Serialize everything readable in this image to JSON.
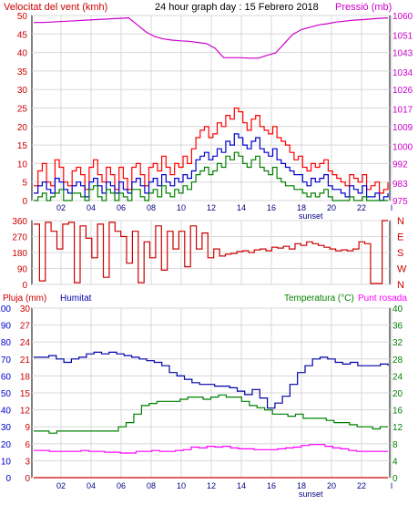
{
  "chart_data": [
    {
      "type": "line",
      "title": "24 hour graph day : 15 Febrero 2018",
      "left_axis_label": "Velocitat del vent (kmh)",
      "right_axis_label": "Pressió (mb)",
      "y_left": {
        "ylim": [
          0,
          50
        ],
        "ticks": [
          0,
          5,
          10,
          15,
          20,
          25,
          30,
          35,
          40,
          45,
          50
        ]
      },
      "y_right": {
        "ylim": [
          975,
          1054
        ],
        "ticks": [
          975,
          983,
          992,
          1000,
          1009,
          1017,
          1026,
          1034,
          1043,
          1051,
          1060
        ]
      },
      "x_ticks": [
        "02",
        "04",
        "06",
        "08",
        "10",
        "12",
        "14",
        "16",
        "18",
        "20",
        "22",
        "l"
      ],
      "x_marker": "sunset",
      "series": [
        {
          "color": "#ff0000",
          "values": [
            4,
            8,
            10,
            5,
            4,
            11,
            9,
            5,
            4,
            8,
            9,
            7,
            3,
            9,
            11,
            7,
            5,
            9,
            7,
            3,
            9,
            6,
            3,
            9,
            10,
            7,
            4,
            9,
            10,
            8,
            12,
            9,
            7,
            10,
            9,
            12,
            10,
            14,
            17,
            19,
            20,
            17,
            18,
            21,
            20,
            23,
            22,
            25,
            24,
            21,
            19,
            22,
            23,
            20,
            19,
            18,
            20,
            17,
            16,
            15,
            13,
            11,
            12,
            9,
            8,
            10,
            9,
            10,
            11,
            8,
            7,
            6,
            5,
            4,
            7,
            6,
            5,
            7,
            3,
            4,
            5,
            2,
            3,
            5
          ]
        },
        {
          "color": "#0000cc",
          "values": [
            2,
            4,
            5,
            3,
            2,
            6,
            5,
            3,
            2,
            4,
            5,
            4,
            1,
            5,
            6,
            4,
            2,
            5,
            4,
            2,
            5,
            3,
            2,
            5,
            6,
            4,
            2,
            5,
            6,
            4,
            7,
            5,
            4,
            6,
            5,
            7,
            6,
            8,
            11,
            12,
            13,
            11,
            12,
            14,
            13,
            16,
            15,
            18,
            17,
            15,
            14,
            16,
            17,
            14,
            13,
            12,
            14,
            11,
            10,
            9,
            8,
            7,
            7,
            5,
            4,
            6,
            5,
            6,
            7,
            4,
            3,
            3,
            2,
            1,
            4,
            3,
            2,
            4,
            1,
            1,
            2,
            0,
            1,
            2
          ]
        },
        {
          "color": "#008000",
          "values": [
            0,
            1,
            2,
            0,
            1,
            2,
            3,
            0,
            0,
            2,
            2,
            1,
            0,
            3,
            4,
            1,
            0,
            3,
            2,
            0,
            2,
            1,
            0,
            3,
            3,
            1,
            0,
            2,
            3,
            1,
            4,
            2,
            1,
            3,
            2,
            4,
            3,
            5,
            7,
            8,
            9,
            7,
            8,
            10,
            9,
            12,
            11,
            13,
            12,
            10,
            9,
            11,
            12,
            9,
            8,
            7,
            9,
            6,
            5,
            4,
            4,
            3,
            3,
            2,
            1,
            2,
            1,
            2,
            3,
            1,
            0,
            0,
            0,
            0,
            1,
            0,
            0,
            1,
            0,
            0,
            0,
            0,
            0,
            0
          ]
        },
        {
          "color": "#cc00cc",
          "axis": "right",
          "values": [
            1051,
            1051,
            1051.2,
            1051.4,
            1051.6,
            1051.8,
            1052,
            1052.2,
            1052.4,
            1052.6,
            1052.8,
            1053,
            1050,
            1047,
            1045,
            1044,
            1043.5,
            1043.2,
            1043,
            1042.5,
            1042,
            1040,
            1036,
            1036,
            1036,
            1035.8,
            1035.8,
            1037,
            1038,
            1042,
            1046,
            1048,
            1049,
            1050,
            1050.5,
            1051.2,
            1051.6,
            1052,
            1052.2,
            1052.5,
            1052.8,
            1053
          ]
        }
      ]
    },
    {
      "type": "line",
      "left_ticks": [
        0,
        90,
        180,
        270,
        360
      ],
      "right_labels": [
        "N",
        "W",
        "S",
        "E",
        "N"
      ],
      "ylim": [
        0,
        360
      ],
      "series": [
        {
          "color": "#cc0000",
          "values": [
            340,
            20,
            350,
            300,
            200,
            340,
            350,
            10,
            330,
            260,
            150,
            340,
            40,
            350,
            300,
            270,
            120,
            300,
            10,
            240,
            150,
            330,
            80,
            300,
            200,
            300,
            100,
            330,
            200,
            290,
            150,
            200,
            160,
            170,
            175,
            185,
            190,
            180,
            195,
            200,
            190,
            210,
            205,
            215,
            200,
            230,
            220,
            240,
            230,
            220,
            210,
            200,
            190,
            195,
            190,
            200,
            240,
            230,
            5,
            5,
            360,
            360
          ]
        }
      ]
    },
    {
      "type": "line",
      "labels": {
        "rain": "Pluja (mm)",
        "humidity": "Humitat",
        "temperature": "Temperatura (°C)",
        "dew_point": "Punt rosada"
      },
      "y_rain": {
        "ylim": [
          0,
          30
        ],
        "ticks": [
          0,
          3,
          6,
          9,
          12,
          15,
          18,
          21,
          24,
          27,
          30
        ]
      },
      "y_humidity": {
        "ylim": [
          0,
          100
        ],
        "ticks": [
          0,
          10,
          20,
          30,
          40,
          50,
          60,
          70,
          80,
          90,
          100
        ]
      },
      "y_temperature": {
        "ylim": [
          0,
          40
        ],
        "ticks": [
          0,
          4,
          8,
          12,
          16,
          20,
          24,
          28,
          32,
          36,
          40
        ]
      },
      "x_ticks": [
        "02",
        "04",
        "06",
        "08",
        "10",
        "12",
        "14",
        "16",
        "18",
        "20",
        "22",
        "l"
      ],
      "x_marker": "sunset",
      "series": [
        {
          "color": "#0000aa",
          "axis": "humidity",
          "values": [
            71,
            71,
            72,
            70,
            68,
            70,
            71,
            73,
            74,
            73,
            74,
            73,
            72,
            71,
            70,
            69,
            68,
            66,
            62,
            60,
            58,
            56,
            55,
            55,
            54,
            54,
            53,
            51,
            49,
            52,
            47,
            41,
            44,
            48,
            55,
            62,
            66,
            70,
            71,
            70,
            68,
            67,
            68,
            66,
            66,
            66,
            67,
            66
          ]
        },
        {
          "color": "#008000",
          "axis": "temperature",
          "values": [
            11,
            11,
            10.5,
            11,
            11,
            11,
            11,
            11,
            11,
            11,
            11,
            12,
            13,
            15,
            17,
            17.5,
            18,
            18,
            18,
            18.5,
            19,
            19,
            18.5,
            19,
            19.5,
            19,
            19,
            18,
            17,
            16.5,
            16,
            15,
            15,
            14.5,
            15,
            14,
            14,
            14,
            13.5,
            13,
            13,
            12.5,
            12,
            12,
            11.5,
            12,
            12
          ]
        },
        {
          "color": "#ff00ff",
          "axis": "temperature",
          "values": [
            6.4,
            6.4,
            6.2,
            6.2,
            6.2,
            6.2,
            6.4,
            6.2,
            6.2,
            6.0,
            6.0,
            5.8,
            5.8,
            6.2,
            6.2,
            6.4,
            6.2,
            6.2,
            6.4,
            6.6,
            7.2,
            7.0,
            7.4,
            7.2,
            7.4,
            7.0,
            6.8,
            6.8,
            6.6,
            6.6,
            6.6,
            6.8,
            7.0,
            7.2,
            7.6,
            7.8,
            7.8,
            7.4,
            7.0,
            6.8,
            6.4,
            6.2,
            6.2,
            6.2,
            6.2,
            6.2
          ]
        },
        {
          "color": "#cc0000",
          "axis": "rain",
          "values": [
            0,
            0
          ]
        }
      ]
    }
  ]
}
